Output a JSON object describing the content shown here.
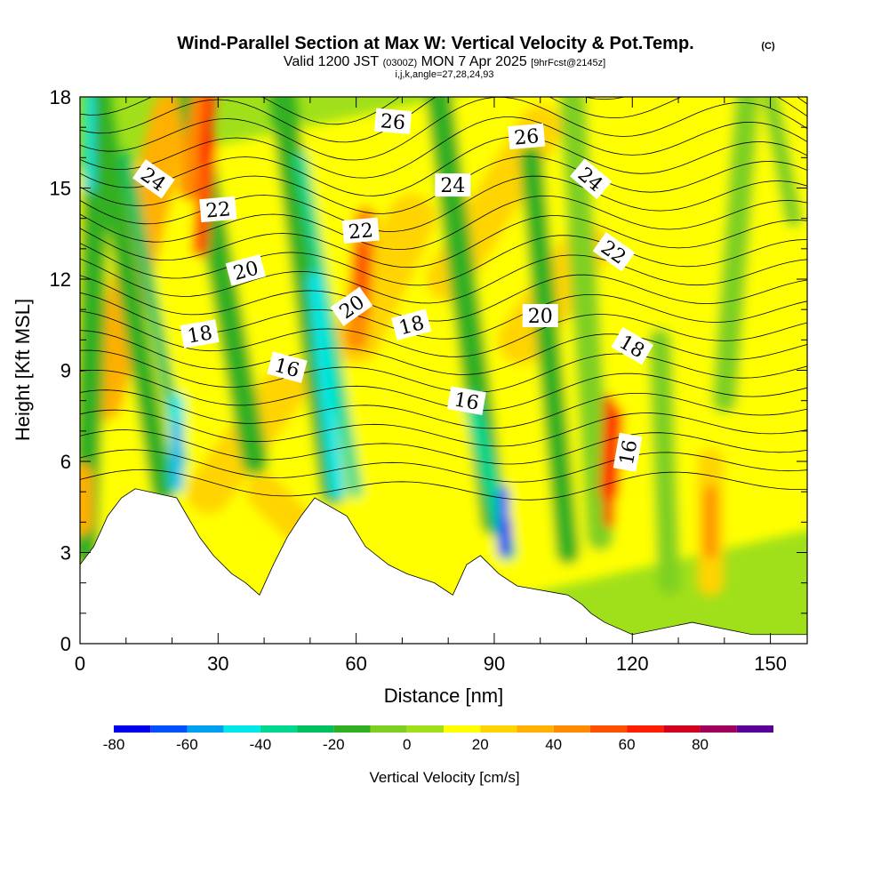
{
  "title": {
    "main": "Wind-Parallel Section at Max W: Vertical Velocity & Pot.Temp.",
    "copyright": "(C)",
    "valid_prefix": "Valid 1200 JST",
    "valid_utc": "(0300Z)",
    "valid_date": "MON 7 Apr 2025",
    "forecast": "[9hrFcst@2145z]",
    "params": "i,j,k,angle=27,28,24,93"
  },
  "chart_data": {
    "type": "heatmap",
    "xlabel": "Distance [nm]",
    "ylabel": "Height [Kft MSL]",
    "xlim": [
      0,
      158
    ],
    "ylim": [
      0,
      18
    ],
    "x_ticks": [
      "0",
      "30",
      "60",
      "90",
      "120",
      "150"
    ],
    "y_ticks": [
      "0",
      "3",
      "6",
      "9",
      "12",
      "15",
      "18"
    ],
    "colorbar": {
      "label": "Vertical Velocity [cm/s]",
      "tick_labels": [
        "-80",
        "-60",
        "-40",
        "-20",
        "0",
        "20",
        "40",
        "60",
        "80"
      ],
      "levels": [
        -80,
        -70,
        -60,
        -50,
        -40,
        -30,
        -20,
        -10,
        0,
        10,
        20,
        30,
        40,
        50,
        60,
        70,
        80,
        90
      ],
      "colors": [
        "#0000ee",
        "#0050ff",
        "#00a0f0",
        "#00e8e8",
        "#00d890",
        "#00c060",
        "#30b020",
        "#7ed020",
        "#a0e01a",
        "#ffff00",
        "#ffd400",
        "#ffb000",
        "#ff8c00",
        "#ff5000",
        "#ff1e00",
        "#d2001e",
        "#a0005a",
        "#5a0096"
      ]
    },
    "terrain_kft": [
      [
        0,
        2.6
      ],
      [
        3,
        3.2
      ],
      [
        6,
        4.2
      ],
      [
        9,
        4.8
      ],
      [
        12,
        5.1
      ],
      [
        21,
        4.8
      ],
      [
        26,
        3.5
      ],
      [
        29,
        2.9
      ],
      [
        33,
        2.3
      ],
      [
        36,
        2.0
      ],
      [
        39,
        1.6
      ],
      [
        42,
        2.6
      ],
      [
        45,
        3.5
      ],
      [
        48,
        4.2
      ],
      [
        51,
        4.8
      ],
      [
        58,
        4.2
      ],
      [
        62,
        3.2
      ],
      [
        67,
        2.6
      ],
      [
        71,
        2.3
      ],
      [
        77,
        2.0
      ],
      [
        81,
        1.6
      ],
      [
        84,
        2.6
      ],
      [
        87,
        2.9
      ],
      [
        91,
        2.3
      ],
      [
        95,
        1.9
      ],
      [
        106,
        1.6
      ],
      [
        109,
        1.3
      ],
      [
        111,
        1.0
      ],
      [
        114,
        0.7
      ],
      [
        120,
        0.3
      ],
      [
        133,
        0.7
      ],
      [
        146,
        0.3
      ],
      [
        158,
        0.3
      ]
    ],
    "contour_labels_potential_temp": [
      {
        "text": "26",
        "x": 68,
        "y": 17.2,
        "rot": 5
      },
      {
        "text": "26",
        "x": 97,
        "y": 16.7,
        "rot": -5
      },
      {
        "text": "24",
        "x": 16,
        "y": 15.3,
        "rot": 35
      },
      {
        "text": "24",
        "x": 81,
        "y": 15.1,
        "rot": 0
      },
      {
        "text": "24",
        "x": 111,
        "y": 15.3,
        "rot": 40
      },
      {
        "text": "22",
        "x": 30,
        "y": 14.3,
        "rot": -5
      },
      {
        "text": "22",
        "x": 61,
        "y": 13.6,
        "rot": -5
      },
      {
        "text": "22",
        "x": 116,
        "y": 12.9,
        "rot": 35
      },
      {
        "text": "20",
        "x": 36,
        "y": 12.3,
        "rot": -15
      },
      {
        "text": "20",
        "x": 59,
        "y": 11.1,
        "rot": -35
      },
      {
        "text": "20",
        "x": 100,
        "y": 10.8,
        "rot": 0
      },
      {
        "text": "18",
        "x": 26,
        "y": 10.2,
        "rot": -10
      },
      {
        "text": "18",
        "x": 72,
        "y": 10.5,
        "rot": -15
      },
      {
        "text": "18",
        "x": 120,
        "y": 9.8,
        "rot": 30
      },
      {
        "text": "16",
        "x": 45,
        "y": 9.1,
        "rot": 15
      },
      {
        "text": "16",
        "x": 84,
        "y": 8.0,
        "rot": 10
      },
      {
        "text": "16",
        "x": 119,
        "y": 6.3,
        "rot": -80
      }
    ]
  }
}
